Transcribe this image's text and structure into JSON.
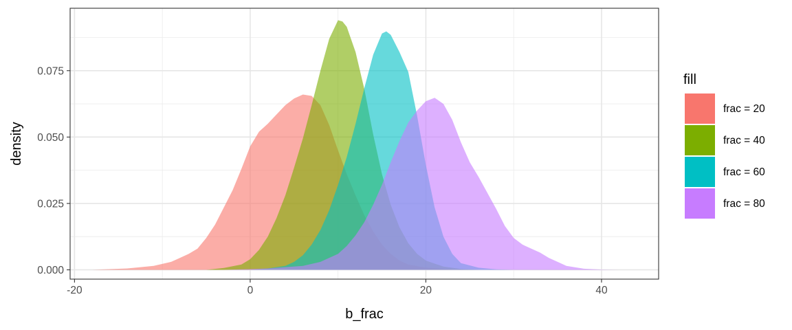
{
  "chart_data": {
    "type": "area",
    "title": "",
    "xlabel": "b_frac",
    "ylabel": "density",
    "xlim": [
      -20.5,
      46.5
    ],
    "ylim": [
      -0.0035,
      0.0985
    ],
    "grid": true,
    "legend_placement": "right",
    "legend_title": "fill",
    "x_ticks": [
      -20,
      0,
      20,
      40
    ],
    "x_tick_labels": [
      "-20",
      "0",
      "20",
      "40"
    ],
    "y_ticks": [
      0,
      0.025,
      0.05,
      0.075
    ],
    "y_tick_labels": [
      "0.000",
      "0.025",
      "0.050",
      "0.075"
    ],
    "series": [
      {
        "name": "frac = 20",
        "color": "#F8766D",
        "points": [
          [
            -18,
            0
          ],
          [
            -14,
            0.0005
          ],
          [
            -11,
            0.0015
          ],
          [
            -9,
            0.003
          ],
          [
            -8,
            0.0045
          ],
          [
            -7,
            0.006
          ],
          [
            -6,
            0.008
          ],
          [
            -5,
            0.012
          ],
          [
            -4,
            0.017
          ],
          [
            -3,
            0.0235
          ],
          [
            -2,
            0.03
          ],
          [
            -1,
            0.038
          ],
          [
            0,
            0.0465
          ],
          [
            1,
            0.052
          ],
          [
            2,
            0.055
          ],
          [
            3,
            0.0585
          ],
          [
            4,
            0.062
          ],
          [
            5,
            0.0645
          ],
          [
            6,
            0.066
          ],
          [
            7,
            0.0655
          ],
          [
            8,
            0.062
          ],
          [
            9,
            0.0545
          ],
          [
            10,
            0.045
          ],
          [
            11,
            0.036
          ],
          [
            12,
            0.028
          ],
          [
            13,
            0.0205
          ],
          [
            14,
            0.0145
          ],
          [
            15,
            0.0095
          ],
          [
            16,
            0.006
          ],
          [
            17,
            0.0035
          ],
          [
            18,
            0.002
          ],
          [
            20,
            0.0008
          ],
          [
            23,
            0.0002
          ],
          [
            26,
            0
          ]
        ]
      },
      {
        "name": "frac = 40",
        "color": "#7CAE00",
        "points": [
          [
            -5,
            0
          ],
          [
            -3,
            0.0007
          ],
          [
            -1,
            0.002
          ],
          [
            0,
            0.004
          ],
          [
            1,
            0.0075
          ],
          [
            2,
            0.0125
          ],
          [
            3,
            0.0195
          ],
          [
            4,
            0.028
          ],
          [
            5,
            0.0385
          ],
          [
            6,
            0.0495
          ],
          [
            7,
            0.062
          ],
          [
            8,
            0.075
          ],
          [
            9,
            0.087
          ],
          [
            10,
            0.094
          ],
          [
            10.5,
            0.0935
          ],
          [
            11,
            0.0915
          ],
          [
            12,
            0.082
          ],
          [
            13,
            0.068
          ],
          [
            14,
            0.051
          ],
          [
            15,
            0.036
          ],
          [
            16,
            0.0245
          ],
          [
            17,
            0.016
          ],
          [
            18,
            0.01
          ],
          [
            19,
            0.006
          ],
          [
            20,
            0.0035
          ],
          [
            22,
            0.0012
          ],
          [
            24,
            0.0003
          ],
          [
            26,
            0
          ]
        ]
      },
      {
        "name": "frac = 60",
        "color": "#00BFC4",
        "points": [
          [
            0,
            0
          ],
          [
            2,
            0.0005
          ],
          [
            4,
            0.0015
          ],
          [
            5,
            0.003
          ],
          [
            6,
            0.0055
          ],
          [
            7,
            0.0095
          ],
          [
            8,
            0.015
          ],
          [
            9,
            0.0225
          ],
          [
            10,
            0.032
          ],
          [
            11,
            0.0425
          ],
          [
            12,
            0.055
          ],
          [
            13,
            0.0685
          ],
          [
            14,
            0.081
          ],
          [
            15,
            0.089
          ],
          [
            15.5,
            0.0898
          ],
          [
            16,
            0.0885
          ],
          [
            17,
            0.082
          ],
          [
            18,
            0.0745
          ],
          [
            19,
            0.058
          ],
          [
            20,
            0.0395
          ],
          [
            21,
            0.0235
          ],
          [
            22,
            0.0125
          ],
          [
            23,
            0.006
          ],
          [
            24,
            0.0025
          ],
          [
            26,
            0.0008
          ],
          [
            28,
            0.0002
          ],
          [
            30,
            0
          ]
        ]
      },
      {
        "name": "frac = 80",
        "color": "#C77CFF",
        "points": [
          [
            -3,
            0
          ],
          [
            2,
            0.0005
          ],
          [
            6,
            0.0015
          ],
          [
            8,
            0.003
          ],
          [
            10,
            0.006
          ],
          [
            11,
            0.009
          ],
          [
            12,
            0.013
          ],
          [
            13,
            0.018
          ],
          [
            14,
            0.0245
          ],
          [
            15,
            0.032
          ],
          [
            16,
            0.0405
          ],
          [
            17,
            0.0485
          ],
          [
            18,
            0.0555
          ],
          [
            19,
            0.06
          ],
          [
            20,
            0.0635
          ],
          [
            21,
            0.0648
          ],
          [
            22,
            0.0625
          ],
          [
            23,
            0.0565
          ],
          [
            24,
            0.048
          ],
          [
            25,
            0.0405
          ],
          [
            26,
            0.035
          ],
          [
            27,
            0.029
          ],
          [
            28,
            0.023
          ],
          [
            29,
            0.0165
          ],
          [
            30,
            0.012
          ],
          [
            31,
            0.0095
          ],
          [
            32,
            0.008
          ],
          [
            33,
            0.0065
          ],
          [
            34,
            0.0045
          ],
          [
            36,
            0.0015
          ],
          [
            38,
            0.0004
          ],
          [
            40,
            0.0001
          ],
          [
            42,
            0
          ]
        ]
      }
    ]
  }
}
